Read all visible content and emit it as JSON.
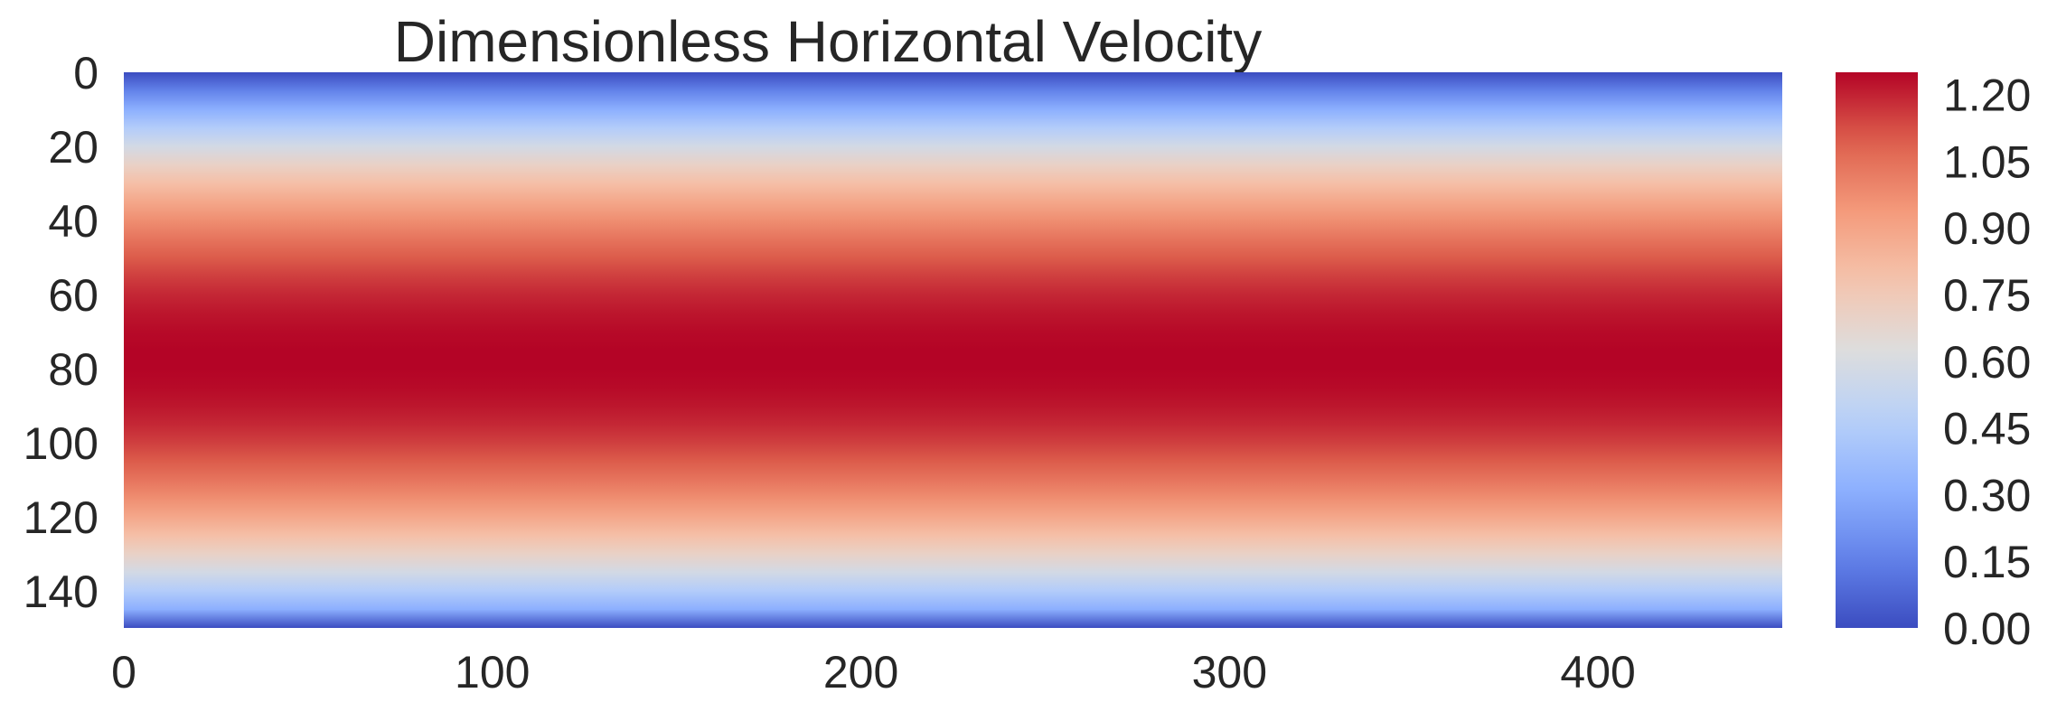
{
  "chart_data": {
    "type": "heatmap",
    "title": "Dimensionless Horizontal Velocity",
    "xlabel": "",
    "ylabel": "",
    "x_range": [
      0,
      450
    ],
    "y_range": [
      0,
      150
    ],
    "x_ticks": [
      0,
      100,
      200,
      300,
      400
    ],
    "x_tick_labels": [
      "0",
      "100",
      "200",
      "300",
      "400"
    ],
    "y_ticks": [
      0,
      20,
      40,
      60,
      80,
      100,
      120,
      140
    ],
    "y_tick_labels": [
      "0",
      "20",
      "40",
      "60",
      "80",
      "100",
      "120",
      "140"
    ],
    "y_axis_inverted": true,
    "colormap": "coolwarm",
    "color_range": [
      0.0,
      1.25
    ],
    "colorbar_ticks": [
      0.0,
      0.15,
      0.3,
      0.45,
      0.6,
      0.75,
      0.9,
      1.05,
      1.2
    ],
    "colorbar_tick_labels": [
      "0.00",
      "0.15",
      "0.30",
      "0.45",
      "0.60",
      "0.75",
      "0.90",
      "1.05",
      "1.20"
    ],
    "profile_y": [
      0,
      5,
      10,
      15,
      20,
      25,
      30,
      35,
      40,
      45,
      50,
      55,
      60,
      65,
      70,
      75,
      80,
      85,
      90,
      95,
      100,
      105,
      110,
      115,
      120,
      125,
      130,
      135,
      140,
      145,
      150
    ],
    "profile_values": [
      0.0,
      0.16,
      0.31,
      0.45,
      0.58,
      0.7,
      0.8,
      0.89,
      0.97,
      1.04,
      1.1,
      1.15,
      1.19,
      1.22,
      1.24,
      1.25,
      1.25,
      1.24,
      1.22,
      1.19,
      1.15,
      1.1,
      1.04,
      0.97,
      0.89,
      0.8,
      0.7,
      0.58,
      0.45,
      0.31,
      0.0
    ],
    "profile_note": "velocity uniform along x",
    "grid": false,
    "colors": {
      "low": "#3b4cc0",
      "mid": "#dddddd",
      "high": "#b40426",
      "text": "#262626"
    }
  }
}
